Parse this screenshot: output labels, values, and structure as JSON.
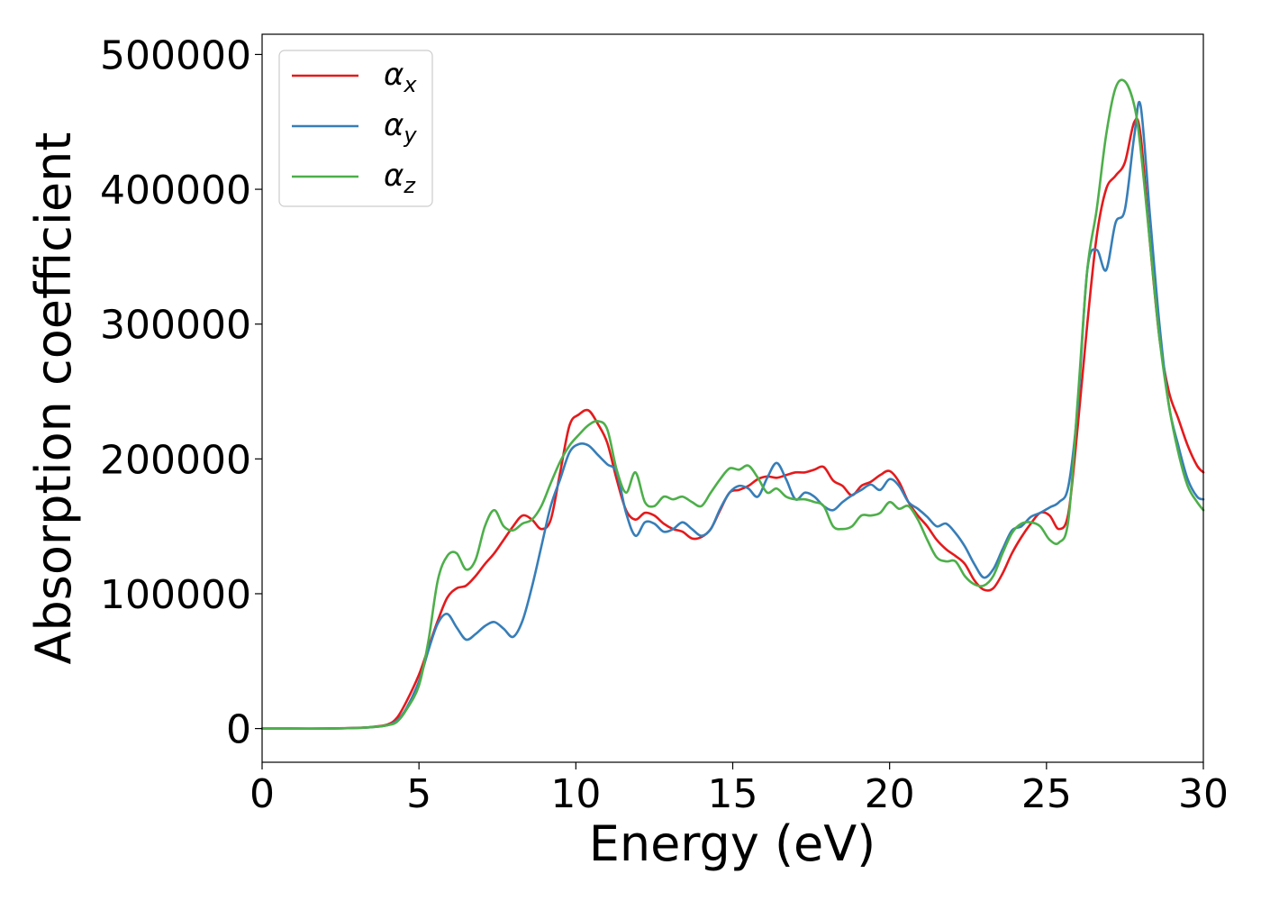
{
  "chart_data": {
    "type": "line",
    "title": "",
    "xlabel": "Energy (eV)",
    "ylabel": "Absorption coefficient",
    "xlim": [
      0,
      30
    ],
    "ylim": [
      -25000,
      515000
    ],
    "xticks": [
      0,
      5,
      10,
      15,
      20,
      25,
      30
    ],
    "yticks": [
      0,
      100000,
      200000,
      300000,
      400000,
      500000
    ],
    "grid": false,
    "legend_position": "top-left",
    "series": [
      {
        "name": "αx",
        "base": "α",
        "sub": "x",
        "color": "#e41a1c",
        "x": [
          0,
          1,
          2,
          3,
          3.5,
          4,
          4.3,
          4.6,
          5,
          5.3,
          5.6,
          5.9,
          6.2,
          6.5,
          6.8,
          7.1,
          7.4,
          7.7,
          8,
          8.3,
          8.6,
          8.9,
          9.2,
          9.5,
          9.8,
          10.1,
          10.4,
          10.7,
          11,
          11.3,
          11.6,
          11.9,
          12.2,
          12.5,
          12.8,
          13.1,
          13.4,
          13.7,
          14,
          14.3,
          14.6,
          14.9,
          15.2,
          15.5,
          15.8,
          16.1,
          16.4,
          16.7,
          17,
          17.3,
          17.6,
          17.9,
          18.2,
          18.5,
          18.8,
          19.1,
          19.4,
          19.7,
          20,
          20.3,
          20.6,
          20.9,
          21.2,
          21.5,
          21.8,
          22.1,
          22.4,
          22.7,
          23,
          23.3,
          23.6,
          23.9,
          24.2,
          24.5,
          24.8,
          25.1,
          25.4,
          25.7,
          26,
          26.3,
          26.6,
          26.9,
          27.2,
          27.5,
          27.8,
          28,
          28.3,
          28.6,
          28.9,
          29.2,
          29.5,
          29.8,
          30
        ],
        "y": [
          0,
          0,
          0,
          500,
          1200,
          3000,
          8000,
          20000,
          40000,
          60000,
          80000,
          97000,
          104000,
          106000,
          113000,
          122000,
          130000,
          140000,
          150000,
          158000,
          155000,
          148000,
          155000,
          190000,
          225000,
          233000,
          236000,
          226000,
          212000,
          185000,
          162000,
          155000,
          160000,
          158000,
          152000,
          148000,
          146000,
          141000,
          142000,
          148000,
          162000,
          175000,
          177000,
          180000,
          185000,
          187000,
          186000,
          188000,
          190000,
          190000,
          192000,
          194000,
          184000,
          180000,
          173000,
          180000,
          183000,
          188000,
          191000,
          183000,
          168000,
          158000,
          150000,
          140000,
          133000,
          128000,
          122000,
          110000,
          103000,
          104000,
          115000,
          130000,
          142000,
          152000,
          160000,
          158000,
          148000,
          160000,
          225000,
          300000,
          365000,
          400000,
          410000,
          420000,
          450000,
          440000,
          360000,
          290000,
          250000,
          230000,
          210000,
          195000,
          190000
        ]
      },
      {
        "name": "αy",
        "base": "α",
        "sub": "y",
        "color": "#377eb8",
        "x": [
          0,
          1,
          2,
          3,
          3.5,
          4,
          4.3,
          4.6,
          5,
          5.3,
          5.6,
          5.9,
          6.2,
          6.5,
          6.8,
          7.1,
          7.4,
          7.7,
          8,
          8.3,
          8.6,
          8.9,
          9.2,
          9.5,
          9.8,
          10.1,
          10.4,
          10.7,
          11,
          11.3,
          11.6,
          11.9,
          12.2,
          12.5,
          12.8,
          13.1,
          13.4,
          13.7,
          14,
          14.3,
          14.6,
          14.9,
          15.2,
          15.5,
          15.8,
          16.1,
          16.4,
          16.7,
          17,
          17.3,
          17.6,
          17.9,
          18.2,
          18.5,
          18.8,
          19.1,
          19.4,
          19.7,
          20,
          20.3,
          20.6,
          20.9,
          21.2,
          21.5,
          21.8,
          22.1,
          22.4,
          22.7,
          23,
          23.3,
          23.6,
          23.9,
          24.2,
          24.5,
          24.8,
          25.1,
          25.4,
          25.7,
          26,
          26.3,
          26.6,
          26.9,
          27.2,
          27.5,
          27.8,
          28,
          28.3,
          28.6,
          28.9,
          29.2,
          29.5,
          29.8,
          30
        ],
        "y": [
          0,
          0,
          0,
          400,
          1000,
          2500,
          6000,
          15000,
          35000,
          58000,
          78000,
          85000,
          75000,
          66000,
          70000,
          76000,
          79000,
          74000,
          68000,
          80000,
          105000,
          135000,
          165000,
          185000,
          205000,
          211000,
          210000,
          203000,
          196000,
          190000,
          160000,
          143000,
          153000,
          152000,
          146000,
          148000,
          153000,
          148000,
          143000,
          148000,
          163000,
          175000,
          180000,
          178000,
          172000,
          186000,
          197000,
          185000,
          170000,
          175000,
          172000,
          165000,
          162000,
          168000,
          173000,
          177000,
          181000,
          177000,
          185000,
          180000,
          168000,
          163000,
          157000,
          150000,
          152000,
          145000,
          135000,
          122000,
          112000,
          118000,
          133000,
          147000,
          150000,
          157000,
          160000,
          164000,
          168000,
          180000,
          240000,
          340000,
          355000,
          340000,
          375000,
          385000,
          440000,
          462000,
          380000,
          300000,
          240000,
          210000,
          185000,
          172000,
          170000
        ]
      },
      {
        "name": "αz",
        "base": "α",
        "sub": "z",
        "color": "#4daf4a",
        "x": [
          0,
          1,
          2,
          3,
          3.5,
          4,
          4.3,
          4.6,
          5,
          5.3,
          5.6,
          5.9,
          6.2,
          6.5,
          6.8,
          7.1,
          7.4,
          7.7,
          8,
          8.3,
          8.6,
          8.9,
          9.2,
          9.5,
          9.8,
          10.1,
          10.4,
          10.7,
          11,
          11.3,
          11.6,
          11.9,
          12.2,
          12.5,
          12.8,
          13.1,
          13.4,
          13.7,
          14,
          14.3,
          14.6,
          14.9,
          15.2,
          15.5,
          15.8,
          16.1,
          16.4,
          16.7,
          17,
          17.3,
          17.6,
          17.9,
          18.2,
          18.5,
          18.8,
          19.1,
          19.4,
          19.7,
          20,
          20.3,
          20.6,
          20.9,
          21.2,
          21.5,
          21.8,
          22.1,
          22.4,
          22.7,
          23,
          23.3,
          23.6,
          23.9,
          24.2,
          24.5,
          24.8,
          25.1,
          25.4,
          25.7,
          26,
          26.3,
          26.6,
          26.9,
          27.2,
          27.5,
          27.8,
          28,
          28.3,
          28.6,
          28.9,
          29.2,
          29.5,
          29.8,
          30
        ],
        "y": [
          0,
          0,
          0,
          400,
          1000,
          2500,
          5000,
          14000,
          32000,
          65000,
          110000,
          128000,
          130000,
          118000,
          125000,
          150000,
          162000,
          150000,
          147000,
          152000,
          155000,
          165000,
          182000,
          198000,
          210000,
          218000,
          225000,
          228000,
          222000,
          192000,
          175000,
          190000,
          168000,
          165000,
          172000,
          170000,
          172000,
          168000,
          165000,
          175000,
          185000,
          193000,
          192000,
          195000,
          186000,
          175000,
          178000,
          172000,
          170000,
          170000,
          168000,
          165000,
          150000,
          148000,
          150000,
          158000,
          158000,
          160000,
          168000,
          163000,
          165000,
          155000,
          140000,
          127000,
          124000,
          124000,
          113000,
          107000,
          106000,
          113000,
          130000,
          145000,
          152000,
          153000,
          150000,
          140000,
          138000,
          155000,
          245000,
          340000,
          385000,
          440000,
          475000,
          480000,
          462000,
          430000,
          360000,
          290000,
          240000,
          205000,
          180000,
          168000,
          162000
        ]
      }
    ]
  }
}
